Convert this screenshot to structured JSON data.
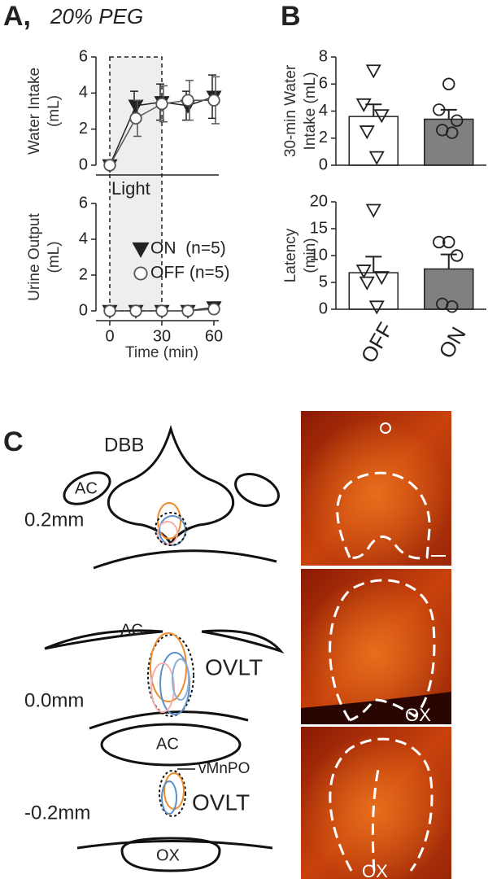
{
  "panels": {
    "a_label": "A,",
    "b_label": "B",
    "c_label": "C"
  },
  "chart_data": [
    {
      "type": "line",
      "title": "20% PEG",
      "ylabel": [
        "Water Intake",
        "(mL)"
      ],
      "x": [
        0,
        15,
        30,
        45,
        60
      ],
      "xlim": [
        0,
        60
      ],
      "ylim": [
        0,
        6
      ],
      "yticks": [
        0,
        2,
        4,
        6
      ],
      "shade": [
        0,
        30
      ],
      "annotation": "Light",
      "series": [
        {
          "color": "#222222",
          "fill": "#222222",
          "marker": "triangle-down",
          "values": [
            0,
            3.3,
            3.5,
            3.3,
            3.8
          ],
          "errors": [
            0,
            0.8,
            1.0,
            0.8,
            1.2
          ]
        },
        {
          "color": "#555555",
          "fill": "#ffffff",
          "marker": "circle",
          "values": [
            0,
            2.6,
            3.4,
            3.6,
            3.6
          ],
          "errors": [
            0,
            1.0,
            1.0,
            1.1,
            1.3
          ]
        }
      ]
    },
    {
      "type": "line",
      "ylabel": [
        "Urine Output",
        "(mL)"
      ],
      "xlabel": "Time (min)",
      "x": [
        0,
        15,
        30,
        45,
        60
      ],
      "xlim": [
        0,
        60
      ],
      "xticks": [
        0,
        30,
        60
      ],
      "ylim": [
        0,
        6
      ],
      "yticks": [
        0,
        2,
        4,
        6
      ],
      "legend": "center",
      "series": [
        {
          "name": "ON  (n=5)",
          "color": "#222222",
          "fill": "#222222",
          "marker": "triangle-down",
          "values": [
            0,
            0,
            0,
            0,
            0.2
          ],
          "errors": [
            0,
            0,
            0,
            0,
            0
          ]
        },
        {
          "name": "OFF (n=5)",
          "color": "#555555",
          "fill": "#ffffff",
          "marker": "circle",
          "values": [
            0,
            0,
            0,
            0,
            0.1
          ],
          "errors": [
            0,
            0,
            0,
            0,
            0
          ]
        }
      ]
    },
    {
      "type": "bar",
      "ylabel": [
        "30-min Water",
        "Intake (mL)"
      ],
      "categories": [
        null,
        null
      ],
      "values": [
        3.6,
        3.4
      ],
      "errors": [
        0.9,
        0.7
      ],
      "colors": [
        "#ffffff",
        "#808080"
      ],
      "markers": [
        "triangle-down",
        "circle"
      ],
      "points": [
        [
          7,
          4.5,
          3.7,
          2.5,
          0.6
        ],
        [
          6,
          4.1,
          3.3,
          2.6,
          2.4
        ]
      ],
      "ylim": [
        0,
        8
      ],
      "yticks": [
        0,
        2,
        4,
        6,
        8
      ]
    },
    {
      "type": "bar",
      "ylabel": [
        "Latency",
        "(min)"
      ],
      "categories": [
        "OFF",
        "ON"
      ],
      "values": [
        6.8,
        7.5
      ],
      "errors": [
        3.0,
        2.7
      ],
      "colors": [
        "#ffffff",
        "#808080"
      ],
      "markers": [
        "triangle-down",
        "circle"
      ],
      "points": [
        [
          18.5,
          7.2,
          6,
          5,
          0.5
        ],
        [
          12.5,
          12.5,
          10,
          1,
          0.5
        ]
      ],
      "ylim": [
        0,
        20
      ],
      "yticks": [
        0,
        5,
        10,
        15,
        20
      ]
    }
  ],
  "diagram": {
    "sections": [
      {
        "labels": [
          "DBB",
          "AC"
        ],
        "level": "0.2mm"
      },
      {
        "labels": [
          "AC",
          "OVLT"
        ],
        "level": "0.0mm"
      },
      {
        "labels": [
          "AC",
          "vMnPO",
          "OVLT",
          "OX"
        ],
        "level": "-0.2mm"
      }
    ],
    "images": [
      {
        "label": "OX"
      },
      {
        "label": "OX"
      }
    ]
  }
}
